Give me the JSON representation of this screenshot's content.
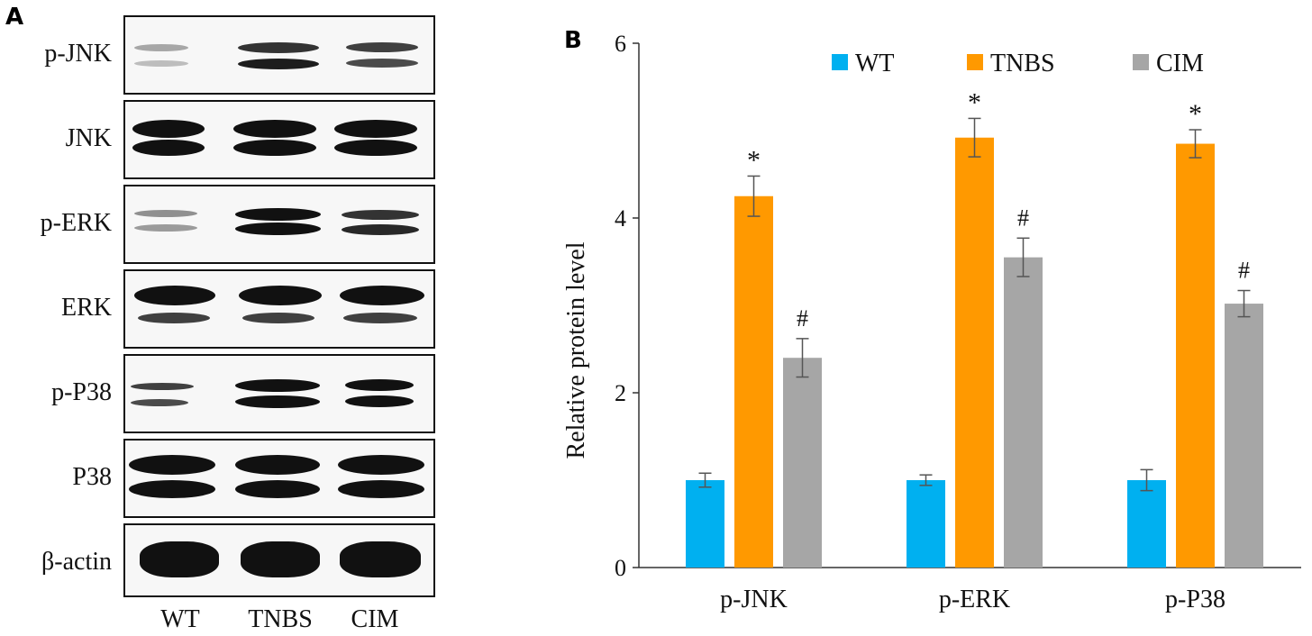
{
  "figure": {
    "panel_a_label": "A",
    "panel_b_label": "B"
  },
  "western_blot": {
    "rows": [
      "p-JNK",
      "JNK",
      "p-ERK",
      "ERK",
      "p-P38",
      "P38",
      "β-actin"
    ],
    "lanes": [
      "WT",
      "TNBS",
      "CIM"
    ],
    "band_color": "#111111",
    "membrane_color": "#f7f7f7"
  },
  "chart_data": {
    "type": "bar",
    "categories": [
      "p-JNK",
      "p-ERK",
      "p-P38"
    ],
    "series": [
      {
        "name": "WT",
        "color": "#00b0f0",
        "values": [
          1.0,
          1.0,
          1.0
        ],
        "errors": [
          0.08,
          0.06,
          0.12
        ],
        "annotations": [
          "",
          "",
          ""
        ]
      },
      {
        "name": "TNBS",
        "color": "#ff9900",
        "values": [
          4.25,
          4.92,
          4.85
        ],
        "errors": [
          0.23,
          0.22,
          0.16
        ],
        "annotations": [
          "*",
          "*",
          "*"
        ]
      },
      {
        "name": "CIM",
        "color": "#a6a6a6",
        "values": [
          2.4,
          3.55,
          3.02
        ],
        "errors": [
          0.22,
          0.22,
          0.15
        ],
        "annotations": [
          "#",
          "#",
          "#"
        ]
      }
    ],
    "ylabel": "Relative protein level",
    "xlabel": "",
    "ylim": [
      0,
      6
    ],
    "yticks": [
      0,
      2,
      4,
      6
    ],
    "ytick_labels": [
      "0",
      "2",
      "4",
      "6"
    ],
    "legend_position": "top",
    "grid": false
  }
}
